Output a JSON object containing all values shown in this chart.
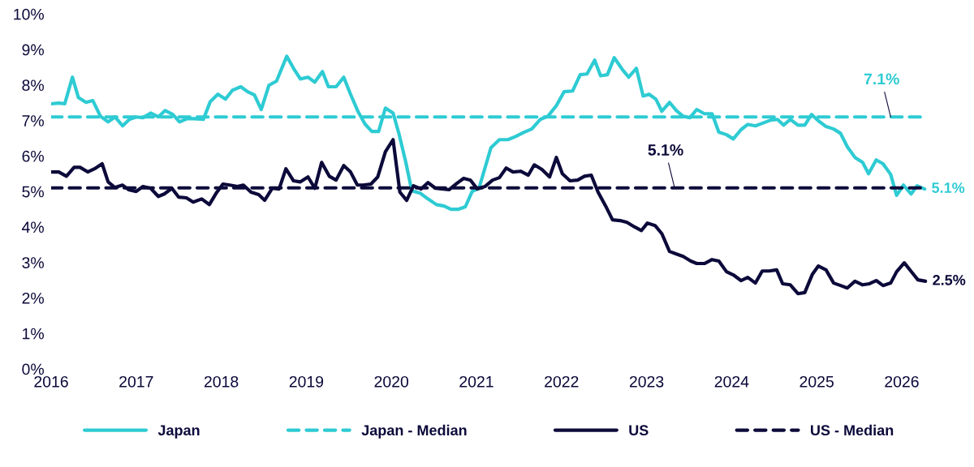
{
  "chart_data": {
    "type": "line",
    "xlim": [
      2016,
      2026.3
    ],
    "xticks": [
      2016,
      2017,
      2018,
      2019,
      2020,
      2021,
      2022,
      2023,
      2024,
      2025,
      2026
    ],
    "ylim": [
      0,
      10
    ],
    "yticks": [
      {
        "value": 0,
        "label": "0%"
      },
      {
        "value": 1,
        "label": "1%"
      },
      {
        "value": 2,
        "label": "2%"
      },
      {
        "value": 3,
        "label": "3%"
      },
      {
        "value": 4,
        "label": "4%"
      },
      {
        "value": 5,
        "label": "5%"
      },
      {
        "value": 6,
        "label": "6%"
      },
      {
        "value": 7,
        "label": "7%"
      },
      {
        "value": 8,
        "label": "8%"
      },
      {
        "value": 9,
        "label": "9%"
      },
      {
        "value": 10,
        "label": "10%"
      }
    ],
    "grid": false,
    "legend": "bottom",
    "marker": "none",
    "series": [
      {
        "name": "Japan",
        "color": "#2ecbd3",
        "line_style": "solid",
        "x": [
          2016.0,
          2016.09,
          2016.16,
          2016.25,
          2016.32,
          2016.41,
          2016.49,
          2016.58,
          2016.67,
          2016.75,
          2016.84,
          2016.92,
          2017.0,
          2017.08,
          2017.17,
          2017.26,
          2017.34,
          2017.43,
          2017.51,
          2017.6,
          2017.68,
          2017.79,
          2017.87,
          2017.96,
          2018.05,
          2018.13,
          2018.23,
          2018.31,
          2018.39,
          2018.47,
          2018.56,
          2018.65,
          2018.77,
          2018.85,
          2018.93,
          2019.02,
          2019.1,
          2019.19,
          2019.26,
          2019.35,
          2019.44,
          2019.52,
          2019.61,
          2019.69,
          2019.77,
          2019.85,
          2019.93,
          2020.02,
          2020.09,
          2020.17,
          2020.24,
          2020.34,
          2020.43,
          2020.53,
          2020.62,
          2020.7,
          2020.79,
          2020.87,
          2020.95,
          2021.03,
          2021.17,
          2021.27,
          2021.37,
          2021.46,
          2021.56,
          2021.65,
          2021.75,
          2021.84,
          2021.94,
          2022.03,
          2022.13,
          2022.22,
          2022.3,
          2022.39,
          2022.46,
          2022.54,
          2022.62,
          2022.72,
          2022.79,
          2022.88,
          2022.96,
          2023.03,
          2023.11,
          2023.18,
          2023.27,
          2023.35,
          2023.43,
          2023.51,
          2023.59,
          2023.68,
          2023.77,
          2023.85,
          2023.94,
          2024.02,
          2024.11,
          2024.19,
          2024.28,
          2024.36,
          2024.46,
          2024.54,
          2024.61,
          2024.69,
          2024.78,
          2024.86,
          2024.94,
          2025.02,
          2025.11,
          2025.2,
          2025.28,
          2025.36,
          2025.45,
          2025.54,
          2025.61,
          2025.7,
          2025.78,
          2025.87,
          2025.94,
          2026.02,
          2026.11,
          2026.18,
          2026.27
        ],
        "values": [
          7.47,
          7.49,
          7.47,
          8.22,
          7.65,
          7.51,
          7.56,
          7.12,
          6.96,
          7.1,
          6.85,
          7.03,
          7.1,
          7.08,
          7.21,
          7.1,
          7.28,
          7.17,
          6.96,
          7.05,
          7.05,
          7.03,
          7.53,
          7.74,
          7.6,
          7.85,
          7.95,
          7.81,
          7.72,
          7.31,
          7.99,
          8.11,
          8.81,
          8.47,
          8.17,
          8.22,
          8.08,
          8.38,
          7.95,
          7.95,
          8.22,
          7.74,
          7.24,
          6.9,
          6.69,
          6.69,
          7.35,
          7.21,
          6.62,
          5.82,
          5.02,
          4.95,
          4.79,
          4.63,
          4.59,
          4.5,
          4.5,
          4.57,
          5.0,
          5.09,
          6.23,
          6.46,
          6.46,
          6.55,
          6.67,
          6.76,
          7.03,
          7.12,
          7.42,
          7.81,
          7.83,
          8.29,
          8.31,
          8.7,
          8.26,
          8.29,
          8.77,
          8.42,
          8.22,
          8.47,
          7.69,
          7.74,
          7.6,
          7.26,
          7.51,
          7.28,
          7.12,
          7.08,
          7.31,
          7.19,
          7.19,
          6.67,
          6.6,
          6.48,
          6.74,
          6.89,
          6.85,
          6.92,
          7.01,
          7.03,
          6.87,
          7.03,
          6.87,
          6.87,
          7.17,
          6.99,
          6.83,
          6.76,
          6.64,
          6.26,
          5.96,
          5.82,
          5.5,
          5.89,
          5.78,
          5.48,
          4.89,
          5.18,
          4.93,
          5.16,
          5.07
        ]
      },
      {
        "name": "Japan - Median",
        "color": "#2ecbd3",
        "line_style": "dashed",
        "x": [
          2016.0,
          2026.28
        ],
        "values": [
          7.1,
          7.1
        ]
      },
      {
        "name": "US",
        "color": "#0c0a3a",
        "line_style": "solid",
        "x": [
          2016.0,
          2016.09,
          2016.18,
          2016.27,
          2016.34,
          2016.43,
          2016.51,
          2016.6,
          2016.67,
          2016.75,
          2016.84,
          2016.91,
          2017.0,
          2017.08,
          2017.17,
          2017.26,
          2017.33,
          2017.42,
          2017.5,
          2017.59,
          2017.67,
          2017.77,
          2017.86,
          2017.94,
          2018.02,
          2018.1,
          2018.19,
          2018.26,
          2018.35,
          2018.44,
          2018.51,
          2018.6,
          2018.68,
          2018.76,
          2018.85,
          2018.93,
          2019.02,
          2019.1,
          2019.18,
          2019.27,
          2019.35,
          2019.44,
          2019.52,
          2019.6,
          2019.67,
          2019.76,
          2019.84,
          2019.93,
          2020.02,
          2020.1,
          2020.18,
          2020.26,
          2020.35,
          2020.43,
          2020.52,
          2020.61,
          2020.68,
          2020.77,
          2020.85,
          2020.93,
          2021.01,
          2021.1,
          2021.19,
          2021.27,
          2021.35,
          2021.43,
          2021.52,
          2021.61,
          2021.68,
          2021.77,
          2021.86,
          2021.94,
          2022.01,
          2022.1,
          2022.19,
          2022.27,
          2022.35,
          2022.43,
          2022.53,
          2022.6,
          2022.69,
          2022.77,
          2022.86,
          2022.94,
          2023.01,
          2023.1,
          2023.18,
          2023.27,
          2023.35,
          2023.43,
          2023.52,
          2023.59,
          2023.68,
          2023.77,
          2023.85,
          2023.94,
          2024.02,
          2024.11,
          2024.19,
          2024.28,
          2024.36,
          2024.44,
          2024.53,
          2024.6,
          2024.69,
          2024.78,
          2024.86,
          2024.95,
          2025.02,
          2025.11,
          2025.2,
          2025.28,
          2025.36,
          2025.45,
          2025.54,
          2025.62,
          2025.7,
          2025.78,
          2025.87,
          2025.94,
          2026.03,
          2026.12,
          2026.19,
          2026.28
        ],
        "values": [
          5.55,
          5.55,
          5.43,
          5.68,
          5.68,
          5.55,
          5.64,
          5.78,
          5.27,
          5.11,
          5.18,
          5.05,
          5.0,
          5.14,
          5.09,
          4.86,
          4.93,
          5.09,
          4.84,
          4.82,
          4.7,
          4.79,
          4.63,
          4.95,
          5.21,
          5.18,
          5.14,
          5.18,
          4.98,
          4.91,
          4.75,
          5.09,
          5.07,
          5.64,
          5.3,
          5.27,
          5.41,
          5.09,
          5.82,
          5.43,
          5.32,
          5.73,
          5.55,
          5.18,
          5.18,
          5.21,
          5.41,
          6.12,
          6.46,
          4.98,
          4.75,
          5.16,
          5.07,
          5.25,
          5.09,
          5.07,
          5.05,
          5.23,
          5.37,
          5.32,
          5.07,
          5.14,
          5.32,
          5.39,
          5.66,
          5.55,
          5.57,
          5.46,
          5.75,
          5.62,
          5.41,
          5.96,
          5.5,
          5.3,
          5.32,
          5.43,
          5.46,
          4.98,
          4.54,
          4.2,
          4.18,
          4.13,
          4.0,
          3.9,
          4.11,
          4.04,
          3.81,
          3.31,
          3.24,
          3.17,
          3.04,
          2.97,
          2.97,
          3.08,
          3.04,
          2.74,
          2.65,
          2.49,
          2.58,
          2.42,
          2.76,
          2.76,
          2.79,
          2.4,
          2.37,
          2.12,
          2.15,
          2.67,
          2.9,
          2.79,
          2.42,
          2.35,
          2.28,
          2.47,
          2.37,
          2.4,
          2.49,
          2.35,
          2.42,
          2.74,
          2.99,
          2.72,
          2.51,
          2.47
        ]
      },
      {
        "name": "US - Median",
        "color": "#0c0a3a",
        "line_style": "dashed",
        "x": [
          2016.0,
          2026.28
        ],
        "values": [
          5.1,
          5.1
        ]
      }
    ],
    "annotations": [
      {
        "text": "7.1%",
        "x": 2025.87,
        "y": 7.1
      },
      {
        "text": "5.1%",
        "x": 2023.33,
        "y": 5.1
      },
      {
        "text": "5.1%",
        "x": 2026.27,
        "y": 5.07
      },
      {
        "text": "2.5%",
        "x": 2026.28,
        "y": 2.47
      }
    ]
  }
}
